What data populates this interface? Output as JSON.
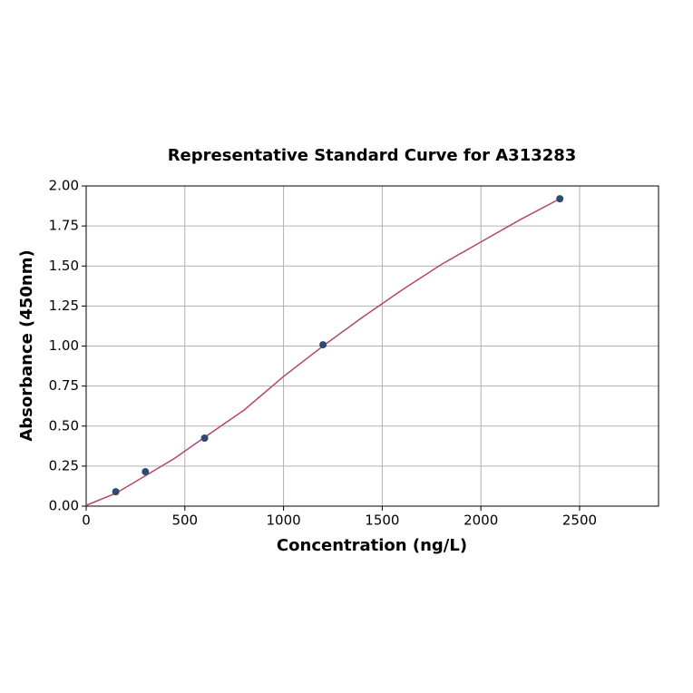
{
  "chart_data": {
    "type": "scatter",
    "title": "Representative Standard Curve for A313283",
    "x_label": "Concentration (ng/L)",
    "y_label": "Absorbance (450nm)",
    "xlim": [
      0,
      2900
    ],
    "ylim": [
      0,
      2
    ],
    "xticks": [
      0,
      500,
      1000,
      1500,
      2000,
      2500
    ],
    "yticks": [
      {
        "value": 0,
        "label": "0.00"
      },
      {
        "value": 0.25,
        "label": "0.25"
      },
      {
        "value": 0.5,
        "label": "0.50"
      },
      {
        "value": 0.75,
        "label": "0.75"
      },
      {
        "value": 1,
        "label": "1.00"
      },
      {
        "value": 1.25,
        "label": "1.25"
      },
      {
        "value": 1.5,
        "label": "1.50"
      },
      {
        "value": 1.75,
        "label": "1.75"
      },
      {
        "value": 2,
        "label": "2.00"
      }
    ],
    "grid": true,
    "series": [
      {
        "type": "line",
        "color": "#b5476a",
        "x": [
          0,
          150,
          300,
          450,
          600,
          800,
          1000,
          1200,
          1400,
          1600,
          1800,
          2000,
          2200,
          2400
        ],
        "values": [
          0.005,
          0.08,
          0.19,
          0.3,
          0.43,
          0.6,
          0.81,
          1.0,
          1.18,
          1.35,
          1.51,
          1.65,
          1.79,
          1.92
        ]
      },
      {
        "type": "scatter",
        "color": "#2e4a72",
        "x": [
          150,
          300,
          600,
          1200,
          2400
        ],
        "values": [
          0.09,
          0.215,
          0.425,
          1.008,
          1.92
        ]
      }
    ]
  }
}
